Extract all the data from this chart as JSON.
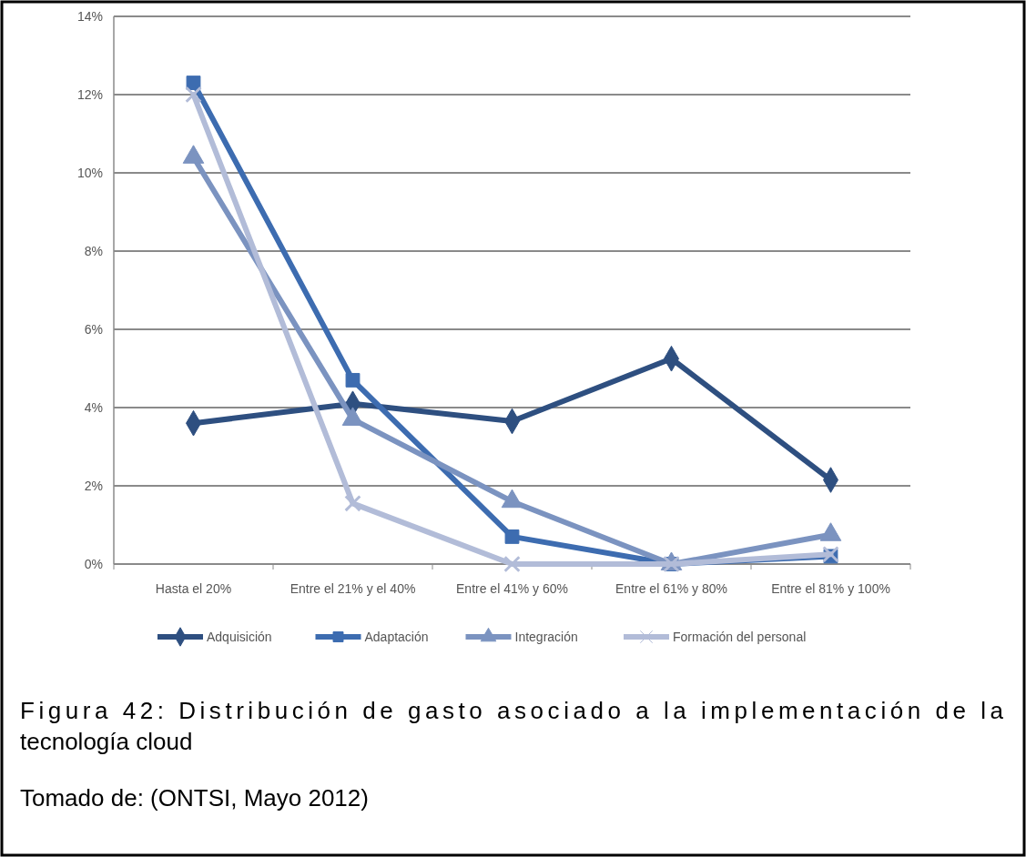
{
  "chart_data": {
    "type": "line",
    "title": "Figura 42: Distribución de gasto asociado a la implementación de la tecnología cloud",
    "annotations": [
      "Tomado de: (ONTSI, Mayo 2012)"
    ],
    "categories": [
      "Hasta el 20%",
      "Entre el 21% y el 40%",
      "Entre el 41% y 60%",
      "Entre el 61% y 80%",
      "Entre el 81% y 100%"
    ],
    "series": [
      {
        "name": "Adquisición",
        "color": "#2e4f80",
        "marker": "diamond",
        "values": [
          3.6,
          4.1,
          3.65,
          5.25,
          2.15
        ]
      },
      {
        "name": "Adaptación",
        "color": "#3d6cb0",
        "marker": "square",
        "values": [
          12.3,
          4.7,
          0.7,
          0,
          0.2
        ]
      },
      {
        "name": "Integración",
        "color": "#7b93c0",
        "marker": "triangle",
        "values": [
          10.4,
          3.7,
          1.6,
          0,
          0.75
        ]
      },
      {
        "name": "Formación del personal",
        "color": "#b2bcd8",
        "marker": "cross",
        "values": [
          12.0,
          1.55,
          0,
          0,
          0.25
        ]
      }
    ],
    "ylim": [
      0,
      14
    ],
    "yticks": [
      {
        "value": 0,
        "label": "0%"
      },
      {
        "value": 2,
        "label": "2%"
      },
      {
        "value": 4,
        "label": "4%"
      },
      {
        "value": 6,
        "label": "6%"
      },
      {
        "value": 8,
        "label": "8%"
      },
      {
        "value": 10,
        "label": "10%"
      },
      {
        "value": 12,
        "label": "12%"
      },
      {
        "value": 14,
        "label": "14%"
      }
    ],
    "grid": "y",
    "legend": "bottom",
    "line_style": "solid"
  }
}
